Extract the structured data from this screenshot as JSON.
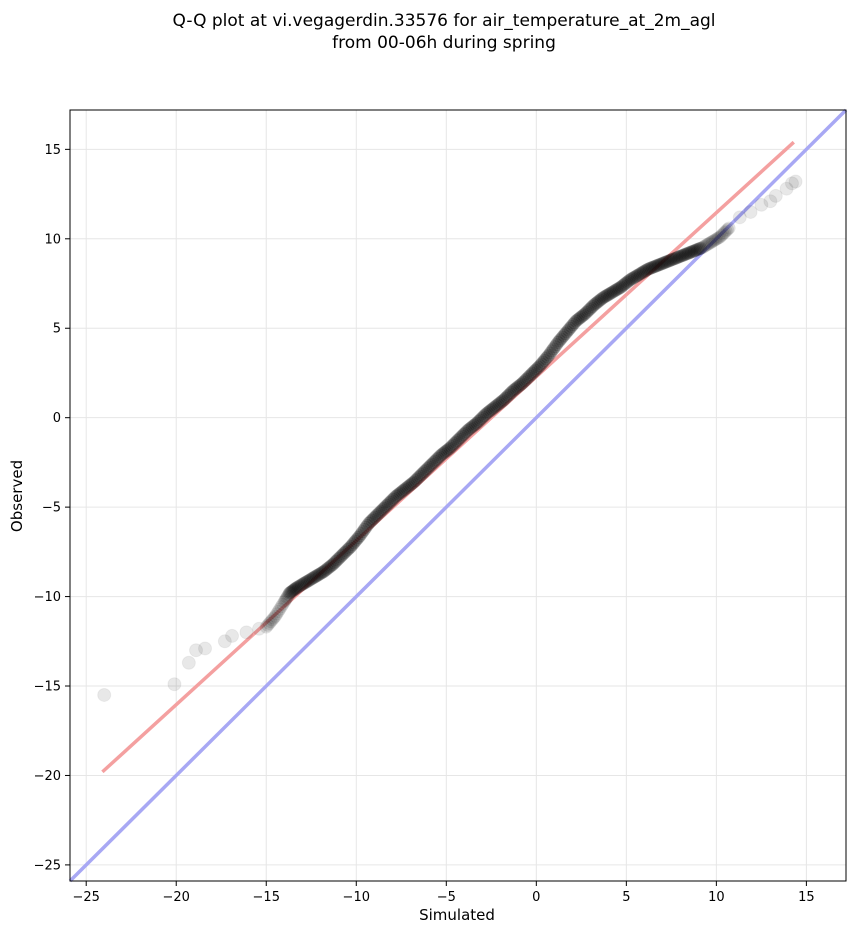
{
  "title_lines": [
    "Q-Q plot at vi.vegagerdin.33576 for air_temperature_at_2m_agl",
    "from 00-06h during spring"
  ],
  "chart_data": {
    "type": "scatter",
    "title": "Q-Q plot at vi.vegagerdin.33576 for air_temperature_at_2m_agl from 00-06h during spring",
    "xlabel": "Simulated",
    "ylabel": "Observed",
    "xlim": [
      -25.9,
      17.2
    ],
    "ylim": [
      -25.9,
      17.2
    ],
    "xticks": [
      -25,
      -20,
      -15,
      -10,
      -5,
      0,
      5,
      10,
      15
    ],
    "yticks": [
      -25,
      -20,
      -15,
      -10,
      -5,
      0,
      5,
      10,
      15
    ],
    "xtick_labels": [
      "−25",
      "−20",
      "−15",
      "−10",
      "−5",
      "0",
      "5",
      "10",
      "15"
    ],
    "ytick_labels": [
      "−25",
      "−20",
      "−15",
      "−10",
      "−5",
      "0",
      "5",
      "10",
      "15"
    ],
    "grid": true,
    "point_color": "#000000",
    "fit_line": {
      "color": "#f4a0a0",
      "x": [
        -24.1,
        14.3
      ],
      "y": [
        -19.8,
        15.4
      ]
    },
    "identity_line": {
      "color": "#a8a8f4",
      "x": [
        -25.9,
        17.2
      ],
      "y": [
        -25.9,
        17.2
      ]
    },
    "tail_points": {
      "x": [
        -24.0,
        -20.1,
        -19.3,
        -18.9,
        -18.4,
        -17.3,
        -16.9,
        -16.1,
        -15.4,
        11.3,
        11.9,
        12.5,
        13.0,
        13.3,
        13.9,
        14.2,
        14.4
      ],
      "y": [
        -15.5,
        -14.9,
        -13.7,
        -13.0,
        -12.9,
        -12.5,
        -12.2,
        -12.0,
        -11.8,
        11.2,
        11.5,
        11.9,
        12.1,
        12.4,
        12.8,
        13.1,
        13.2
      ]
    },
    "body_points": {
      "x": [
        -15.0,
        -14.5,
        -14.0,
        -13.7,
        -13.3,
        -12.8,
        -12.3,
        -11.8,
        -11.3,
        -10.8,
        -10.3,
        -9.8,
        -9.3,
        -8.8,
        -8.3,
        -7.8,
        -7.3,
        -6.8,
        -6.3,
        -5.8,
        -5.3,
        -4.8,
        -4.3,
        -3.8,
        -3.3,
        -2.8,
        -2.3,
        -1.8,
        -1.3,
        -0.8,
        -0.3,
        0.2,
        0.7,
        1.2,
        1.7,
        2.2,
        2.7,
        3.2,
        3.7,
        4.2,
        4.7,
        5.2,
        5.7,
        6.2,
        6.7,
        7.2,
        7.7,
        8.2,
        8.7,
        9.2,
        9.7,
        10.2,
        10.7
      ],
      "y": [
        -11.7,
        -11.1,
        -10.3,
        -9.8,
        -9.5,
        -9.2,
        -8.9,
        -8.6,
        -8.2,
        -7.7,
        -7.2,
        -6.6,
        -5.9,
        -5.4,
        -4.9,
        -4.4,
        -4.0,
        -3.6,
        -3.1,
        -2.6,
        -2.1,
        -1.7,
        -1.2,
        -0.7,
        -0.3,
        0.2,
        0.6,
        1.0,
        1.5,
        1.9,
        2.4,
        2.9,
        3.5,
        4.2,
        4.8,
        5.4,
        5.8,
        6.3,
        6.7,
        7.0,
        7.3,
        7.7,
        8.0,
        8.3,
        8.5,
        8.7,
        8.9,
        9.1,
        9.3,
        9.5,
        9.8,
        10.1,
        10.6
      ]
    }
  }
}
